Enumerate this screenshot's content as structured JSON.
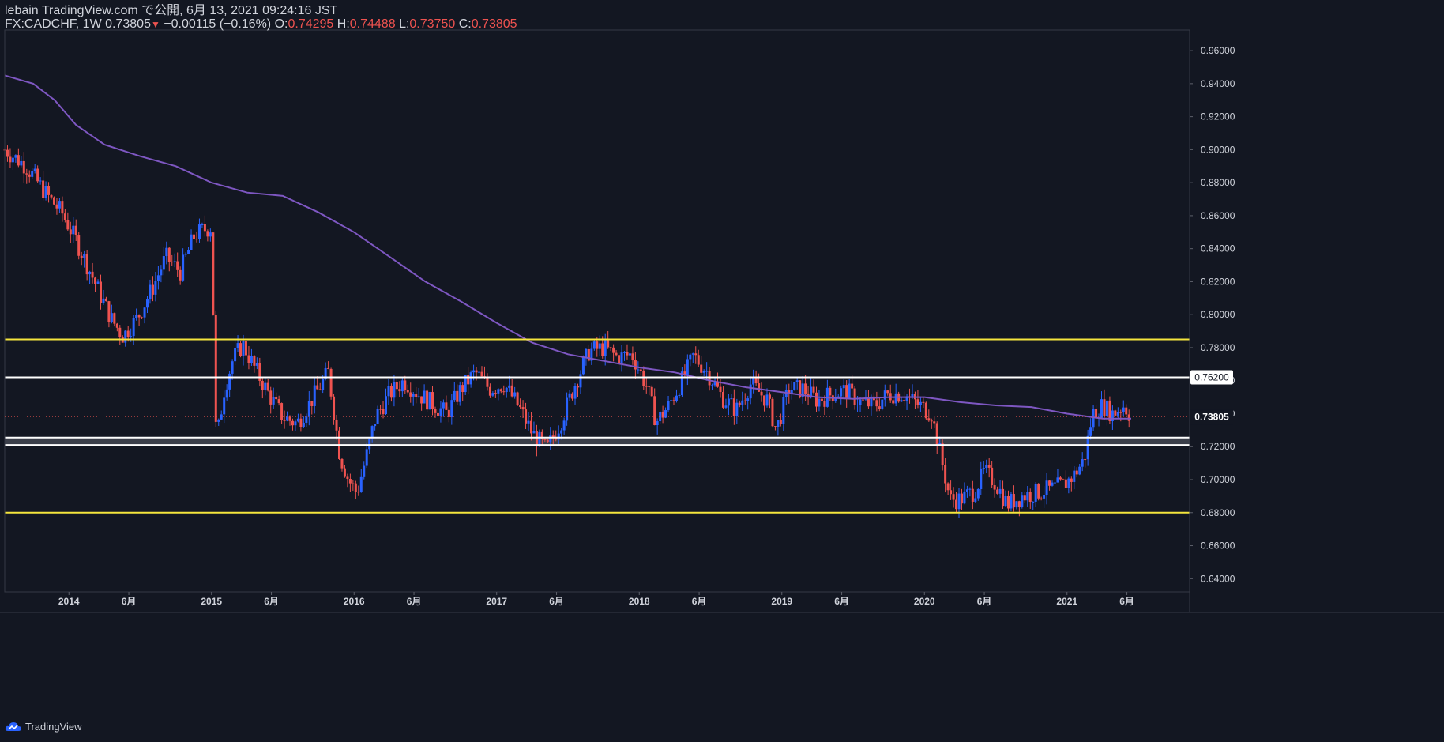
{
  "header": {
    "line1": "lebain TradingView.com で公開, 6月 13, 2021 09:24:16 JST",
    "symbol": "FX:CADCHF, 1W",
    "last": "0.73805",
    "change": "−0.00115 (−0.16%)",
    "o_label": "O:",
    "o_val": "0.74295",
    "h_label": "H:",
    "h_val": "0.74488",
    "l_label": "L:",
    "l_val": "0.73750",
    "c_label": "C:",
    "c_val": "0.73805"
  },
  "footer": {
    "brand": "TradingView"
  },
  "colors": {
    "background": "#131722",
    "up": "#2962ff",
    "down": "#ef5350",
    "ma": "#7e57c2",
    "yellow_line": "#f5e63d",
    "white_line": "#ffffff",
    "grid": "#1e222d"
  },
  "chart_data": {
    "type": "candlestick",
    "symbol": "FX:CADCHF",
    "interval": "1W",
    "ylim": [
      0.63,
      0.97
    ],
    "y_ticks": [
      "0.96000",
      "0.94000",
      "0.92000",
      "0.90000",
      "0.88000",
      "0.86000",
      "0.84000",
      "0.82000",
      "0.80000",
      "0.78000",
      "0.76000",
      "0.74000",
      "0.72000",
      "0.70000",
      "0.68000",
      "0.66000",
      "0.64000"
    ],
    "x_ticks": [
      {
        "label": "2014",
        "t": 2014.0
      },
      {
        "label": "6月",
        "t": 2014.42
      },
      {
        "label": "2015",
        "t": 2015.0
      },
      {
        "label": "6月",
        "t": 2015.42
      },
      {
        "label": "2016",
        "t": 2016.0
      },
      {
        "label": "6月",
        "t": 2016.42
      },
      {
        "label": "2017",
        "t": 2017.0
      },
      {
        "label": "6月",
        "t": 2017.42
      },
      {
        "label": "2018",
        "t": 2018.0
      },
      {
        "label": "6月",
        "t": 2018.42
      },
      {
        "label": "2019",
        "t": 2019.0
      },
      {
        "label": "6月",
        "t": 2019.42
      },
      {
        "label": "2020",
        "t": 2020.0
      },
      {
        "label": "6月",
        "t": 2020.42
      },
      {
        "label": "2021",
        "t": 2021.0
      },
      {
        "label": "6月",
        "t": 2021.42
      }
    ],
    "horizontal_lines": [
      {
        "price": 0.785,
        "color": "#f5e63d"
      },
      {
        "price": 0.762,
        "color": "#ffffff",
        "label": "0.76200"
      },
      {
        "price": 0.7255,
        "color": "#ffffff"
      },
      {
        "price": 0.721,
        "color": "#ffffff"
      },
      {
        "price": 0.68,
        "color": "#f5e63d"
      }
    ],
    "zone": {
      "top": 0.7255,
      "bottom": 0.721
    },
    "last_price_label": "0.73805",
    "last_price": 0.73805,
    "ma_path": [
      [
        2013.55,
        0.945
      ],
      [
        2013.75,
        0.94
      ],
      [
        2013.9,
        0.93
      ],
      [
        2014.05,
        0.915
      ],
      [
        2014.25,
        0.903
      ],
      [
        2014.5,
        0.896
      ],
      [
        2014.75,
        0.89
      ],
      [
        2015.0,
        0.88
      ],
      [
        2015.25,
        0.874
      ],
      [
        2015.5,
        0.872
      ],
      [
        2015.75,
        0.862
      ],
      [
        2016.0,
        0.85
      ],
      [
        2016.25,
        0.835
      ],
      [
        2016.5,
        0.82
      ],
      [
        2016.75,
        0.808
      ],
      [
        2017.0,
        0.795
      ],
      [
        2017.25,
        0.783
      ],
      [
        2017.5,
        0.776
      ],
      [
        2017.75,
        0.772
      ],
      [
        2018.0,
        0.768
      ],
      [
        2018.25,
        0.765
      ],
      [
        2018.5,
        0.76
      ],
      [
        2018.75,
        0.756
      ],
      [
        2019.0,
        0.753
      ],
      [
        2019.25,
        0.75
      ],
      [
        2019.5,
        0.749
      ],
      [
        2019.75,
        0.75
      ],
      [
        2020.0,
        0.75
      ],
      [
        2020.25,
        0.747
      ],
      [
        2020.5,
        0.745
      ],
      [
        2020.75,
        0.744
      ],
      [
        2021.0,
        0.74
      ],
      [
        2021.25,
        0.737
      ],
      [
        2021.45,
        0.737
      ]
    ],
    "price_path": [
      [
        2013.55,
        0.9
      ],
      [
        2013.7,
        0.89
      ],
      [
        2013.85,
        0.872
      ],
      [
        2013.95,
        0.862
      ],
      [
        2014.05,
        0.845
      ],
      [
        2014.15,
        0.826
      ],
      [
        2014.22,
        0.812
      ],
      [
        2014.3,
        0.797
      ],
      [
        2014.38,
        0.787
      ],
      [
        2014.48,
        0.798
      ],
      [
        2014.58,
        0.815
      ],
      [
        2014.68,
        0.835
      ],
      [
        2014.78,
        0.826
      ],
      [
        2014.88,
        0.848
      ],
      [
        2014.96,
        0.852
      ],
      [
        2015.0,
        0.853
      ],
      [
        2015.03,
        0.72
      ],
      [
        2015.09,
        0.755
      ],
      [
        2015.15,
        0.773
      ],
      [
        2015.22,
        0.782
      ],
      [
        2015.3,
        0.768
      ],
      [
        2015.4,
        0.752
      ],
      [
        2015.5,
        0.738
      ],
      [
        2015.6,
        0.734
      ],
      [
        2015.7,
        0.748
      ],
      [
        2015.82,
        0.765
      ],
      [
        2015.9,
        0.715
      ],
      [
        2015.96,
        0.7
      ],
      [
        2016.02,
        0.692
      ],
      [
        2016.08,
        0.712
      ],
      [
        2016.15,
        0.738
      ],
      [
        2016.25,
        0.752
      ],
      [
        2016.35,
        0.76
      ],
      [
        2016.45,
        0.752
      ],
      [
        2016.55,
        0.746
      ],
      [
        2016.65,
        0.74
      ],
      [
        2016.75,
        0.755
      ],
      [
        2016.85,
        0.765
      ],
      [
        2016.95,
        0.755
      ],
      [
        2017.05,
        0.758
      ],
      [
        2017.15,
        0.745
      ],
      [
        2017.25,
        0.728
      ],
      [
        2017.35,
        0.718
      ],
      [
        2017.45,
        0.735
      ],
      [
        2017.55,
        0.758
      ],
      [
        2017.65,
        0.778
      ],
      [
        2017.75,
        0.78
      ],
      [
        2017.85,
        0.774
      ],
      [
        2017.95,
        0.776
      ],
      [
        2018.05,
        0.757
      ],
      [
        2018.12,
        0.735
      ],
      [
        2018.2,
        0.744
      ],
      [
        2018.3,
        0.76
      ],
      [
        2018.38,
        0.775
      ],
      [
        2018.48,
        0.765
      ],
      [
        2018.58,
        0.75
      ],
      [
        2018.68,
        0.742
      ],
      [
        2018.78,
        0.758
      ],
      [
        2018.9,
        0.748
      ],
      [
        2018.96,
        0.73
      ],
      [
        2019.05,
        0.755
      ],
      [
        2019.15,
        0.755
      ],
      [
        2019.25,
        0.748
      ],
      [
        2019.35,
        0.752
      ],
      [
        2019.45,
        0.754
      ],
      [
        2019.55,
        0.747
      ],
      [
        2019.65,
        0.745
      ],
      [
        2019.75,
        0.752
      ],
      [
        2019.85,
        0.752
      ],
      [
        2019.95,
        0.746
      ],
      [
        2020.05,
        0.74
      ],
      [
        2020.12,
        0.712
      ],
      [
        2020.18,
        0.688
      ],
      [
        2020.25,
        0.688
      ],
      [
        2020.35,
        0.693
      ],
      [
        2020.42,
        0.705
      ],
      [
        2020.5,
        0.698
      ],
      [
        2020.58,
        0.685
      ],
      [
        2020.68,
        0.69
      ],
      [
        2020.78,
        0.692
      ],
      [
        2020.88,
        0.694
      ],
      [
        2020.98,
        0.697
      ],
      [
        2021.05,
        0.703
      ],
      [
        2021.12,
        0.712
      ],
      [
        2021.18,
        0.74
      ],
      [
        2021.25,
        0.745
      ],
      [
        2021.32,
        0.74
      ],
      [
        2021.4,
        0.745
      ],
      [
        2021.45,
        0.738
      ]
    ]
  }
}
